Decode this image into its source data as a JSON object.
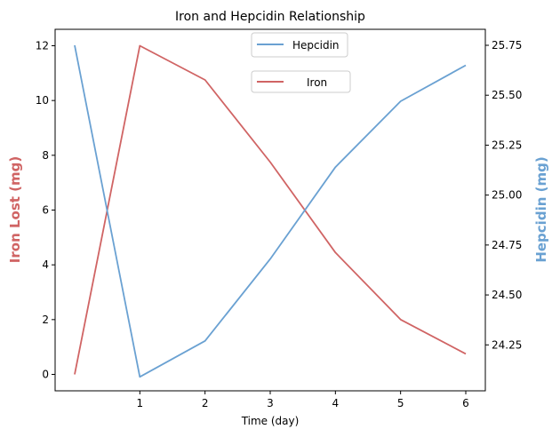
{
  "chart_data": {
    "type": "line",
    "title": "Iron and Hepcidin Relationship",
    "xlabel": "Time (day)",
    "ylabel_left": "Iron Lost (mg)",
    "ylabel_right": "Hepcidin (mg)",
    "x": [
      0,
      1,
      2,
      3,
      4,
      5,
      6
    ],
    "x_ticks": [
      1,
      2,
      3,
      4,
      5,
      6
    ],
    "x_tick_labels": [
      "1",
      "2",
      "3",
      "4",
      "5",
      "6"
    ],
    "xlim": [
      -0.3,
      6.3
    ],
    "ylim_left": [
      -0.6,
      12.6
    ],
    "ylim_right": [
      24.02,
      25.83
    ],
    "y_ticks_left": [
      0,
      2,
      4,
      6,
      8,
      10,
      12
    ],
    "y_tick_labels_left": [
      "0",
      "2",
      "4",
      "6",
      "8",
      "10",
      "12"
    ],
    "y_ticks_right": [
      24.25,
      24.5,
      24.75,
      25.0,
      25.25,
      25.5,
      25.75
    ],
    "y_tick_labels_right": [
      "24.25",
      "24.50",
      "24.75",
      "25.00",
      "25.25",
      "25.50",
      "25.75"
    ],
    "grid": false,
    "series": [
      {
        "name": "Iron",
        "axis": "left",
        "color": "#d06464",
        "values": [
          0,
          12,
          10.75,
          7.75,
          4.45,
          2.0,
          0.75
        ]
      },
      {
        "name": "Hepcidin",
        "axis": "right",
        "color": "#6aa1d2",
        "values": [
          25.75,
          24.09,
          24.27,
          24.68,
          25.14,
          25.47,
          25.65
        ]
      }
    ],
    "legends": [
      {
        "series": "Hepcidin",
        "label": "Hepcidin",
        "placement": "top-center"
      },
      {
        "series": "Iron",
        "label": "Iron",
        "placement": "top-center"
      }
    ]
  }
}
